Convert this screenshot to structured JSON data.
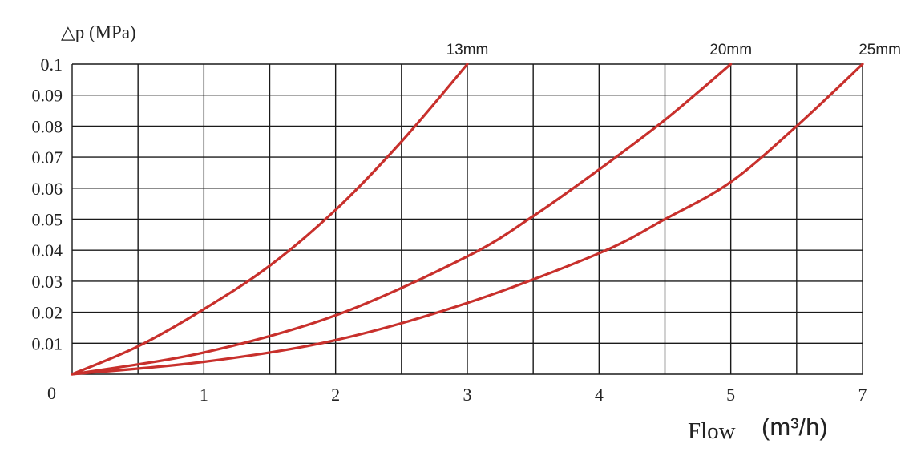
{
  "chart_data": {
    "type": "line",
    "ylabel": "△p (MPa)",
    "xlabel": "Flow",
    "xunit": "(m³/h)",
    "y_ticks": [
      "0",
      "0.01",
      "0.02",
      "0.03",
      "0.04",
      "0.05",
      "0.06",
      "0.07",
      "0.08",
      "0.09",
      "0.1"
    ],
    "x_tick_labels": [
      "1",
      "2",
      "3",
      "4",
      "5",
      "7"
    ],
    "ylim": [
      0,
      0.1
    ],
    "grid": true,
    "series": [
      {
        "name": "13mm",
        "color": "#c8302c",
        "points": [
          [
            0,
            0
          ],
          [
            0.5,
            0.009
          ],
          [
            1,
            0.021
          ],
          [
            1.5,
            0.035
          ],
          [
            2,
            0.053
          ],
          [
            2.5,
            0.075
          ],
          [
            3,
            0.1
          ]
        ]
      },
      {
        "name": "20mm",
        "color": "#c8302c",
        "points": [
          [
            0,
            0
          ],
          [
            1,
            0.007
          ],
          [
            2,
            0.019
          ],
          [
            3,
            0.038
          ],
          [
            3.5,
            0.051
          ],
          [
            4,
            0.066
          ],
          [
            4.5,
            0.082
          ],
          [
            5,
            0.1
          ]
        ]
      },
      {
        "name": "25mm",
        "color": "#c8302c",
        "points": [
          [
            0,
            0
          ],
          [
            1,
            0.004
          ],
          [
            2,
            0.011
          ],
          [
            3,
            0.023
          ],
          [
            4,
            0.039
          ],
          [
            4.5,
            0.05
          ],
          [
            5,
            0.062
          ],
          [
            5.5,
            0.08
          ],
          [
            6,
            0.1
          ]
        ]
      }
    ]
  }
}
